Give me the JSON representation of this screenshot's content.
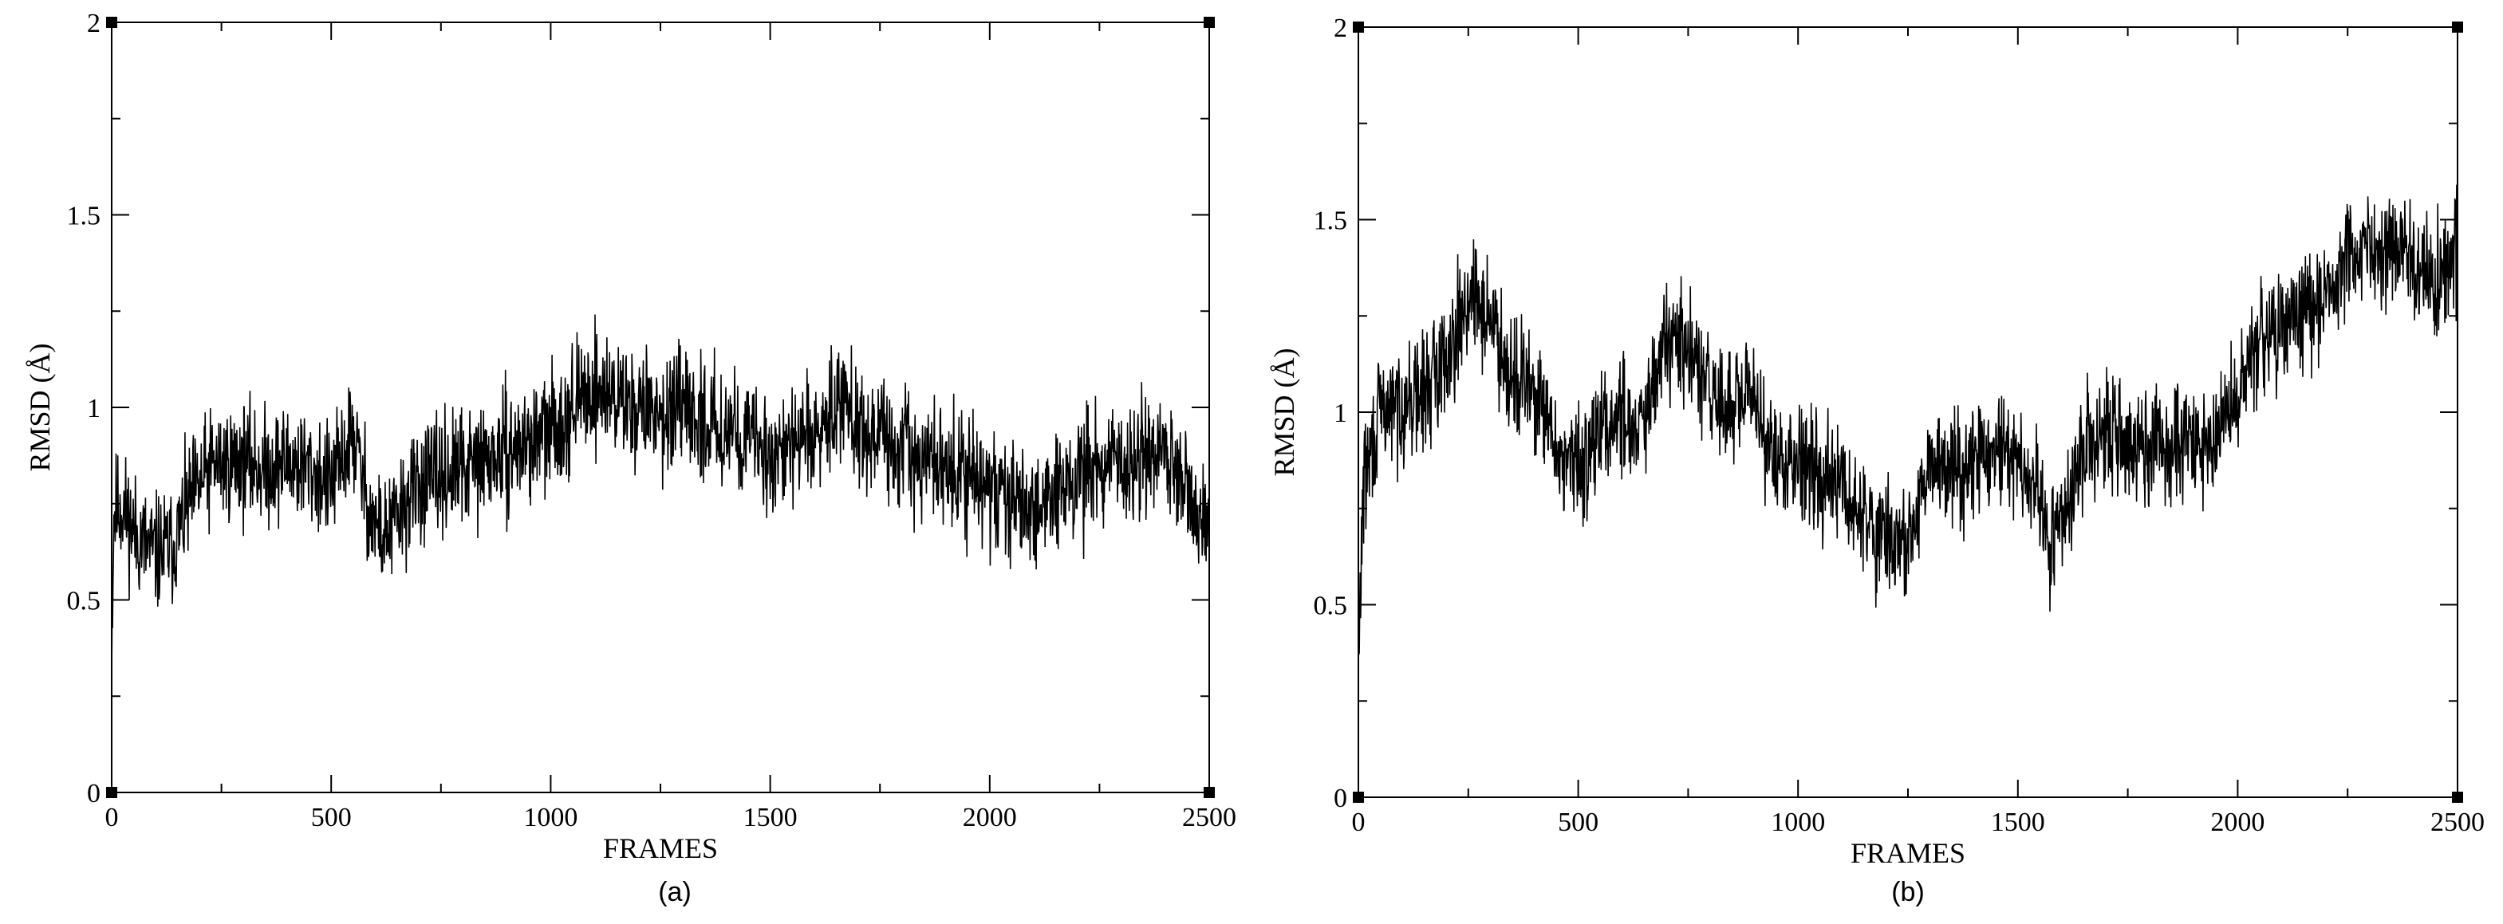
{
  "chart_data": [
    {
      "type": "line",
      "caption": "(a)",
      "xlabel": "FRAMES",
      "ylabel": "RMSD (Å)",
      "xlim": [
        0,
        2500
      ],
      "ylim": [
        0,
        2
      ],
      "x_ticks": [
        "0",
        "500",
        "1000",
        "1500",
        "2000",
        "2500"
      ],
      "y_ticks": [
        "0",
        "0.5",
        "1",
        "1.5",
        "2"
      ],
      "grid": false,
      "series": [
        {
          "color": "#000000",
          "noise": 0.075,
          "seed": 11,
          "points": [
            [
              0,
              0.38
            ],
            [
              5,
              0.72
            ],
            [
              20,
              0.75
            ],
            [
              60,
              0.66
            ],
            [
              100,
              0.62
            ],
            [
              140,
              0.64
            ],
            [
              180,
              0.76
            ],
            [
              230,
              0.85
            ],
            [
              300,
              0.86
            ],
            [
              350,
              0.84
            ],
            [
              400,
              0.86
            ],
            [
              450,
              0.84
            ],
            [
              500,
              0.8
            ],
            [
              550,
              0.93
            ],
            [
              590,
              0.72
            ],
            [
              620,
              0.66
            ],
            [
              700,
              0.8
            ],
            [
              800,
              0.84
            ],
            [
              900,
              0.88
            ],
            [
              1000,
              0.94
            ],
            [
              1050,
              1.0
            ],
            [
              1100,
              1.05
            ],
            [
              1200,
              1.0
            ],
            [
              1300,
              0.98
            ],
            [
              1400,
              0.95
            ],
            [
              1500,
              0.88
            ],
            [
              1600,
              0.92
            ],
            [
              1660,
              1.05
            ],
            [
              1700,
              0.95
            ],
            [
              1800,
              0.88
            ],
            [
              1900,
              0.85
            ],
            [
              2000,
              0.78
            ],
            [
              2100,
              0.74
            ],
            [
              2200,
              0.82
            ],
            [
              2300,
              0.86
            ],
            [
              2400,
              0.88
            ],
            [
              2450,
              0.8
            ],
            [
              2500,
              0.66
            ]
          ]
        }
      ]
    },
    {
      "type": "line",
      "caption": "(b)",
      "xlabel": "FRAMES",
      "ylabel": "RMSD (Å)",
      "xlim": [
        0,
        2500
      ],
      "ylim": [
        0,
        2
      ],
      "x_ticks": [
        "0",
        "500",
        "1000",
        "1500",
        "2000",
        "2500"
      ],
      "y_ticks": [
        "0",
        "0.5",
        "1",
        "1.5",
        "2"
      ],
      "grid": false,
      "series": [
        {
          "color": "#000000",
          "noise": 0.075,
          "seed": 29,
          "points": [
            [
              0,
              0.3
            ],
            [
              10,
              0.8
            ],
            [
              50,
              1.0
            ],
            [
              100,
              1.02
            ],
            [
              150,
              1.05
            ],
            [
              200,
              1.15
            ],
            [
              250,
              1.3
            ],
            [
              300,
              1.25
            ],
            [
              350,
              1.1
            ],
            [
              400,
              1.05
            ],
            [
              450,
              0.9
            ],
            [
              500,
              0.85
            ],
            [
              550,
              0.95
            ],
            [
              600,
              1.0
            ],
            [
              650,
              0.95
            ],
            [
              700,
              1.2
            ],
            [
              750,
              1.15
            ],
            [
              800,
              1.05
            ],
            [
              850,
              1.0
            ],
            [
              900,
              1.05
            ],
            [
              950,
              0.85
            ],
            [
              1000,
              0.9
            ],
            [
              1100,
              0.8
            ],
            [
              1150,
              0.72
            ],
            [
              1200,
              0.68
            ],
            [
              1250,
              0.65
            ],
            [
              1300,
              0.85
            ],
            [
              1400,
              0.88
            ],
            [
              1450,
              0.9
            ],
            [
              1500,
              0.85
            ],
            [
              1550,
              0.8
            ],
            [
              1570,
              0.62
            ],
            [
              1600,
              0.7
            ],
            [
              1650,
              0.9
            ],
            [
              1700,
              0.95
            ],
            [
              1750,
              0.92
            ],
            [
              1800,
              0.9
            ],
            [
              1850,
              0.93
            ],
            [
              1900,
              0.9
            ],
            [
              1950,
              0.92
            ],
            [
              2000,
              1.05
            ],
            [
              2050,
              1.2
            ],
            [
              2100,
              1.2
            ],
            [
              2150,
              1.25
            ],
            [
              2200,
              1.3
            ],
            [
              2250,
              1.4
            ],
            [
              2300,
              1.45
            ],
            [
              2350,
              1.42
            ],
            [
              2400,
              1.38
            ],
            [
              2450,
              1.35
            ],
            [
              2500,
              1.42
            ]
          ]
        }
      ]
    }
  ]
}
